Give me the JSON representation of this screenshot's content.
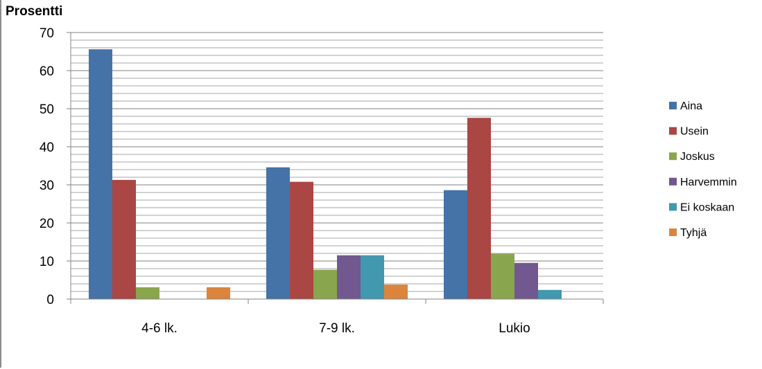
{
  "chart_data": {
    "type": "bar",
    "title": "Prosentti",
    "categories": [
      "4-6 lk.",
      "7-9 lk.",
      "Lukio"
    ],
    "series": [
      {
        "name": "Aina",
        "color": "#4572A7",
        "values": [
          65.6,
          34.6,
          28.6
        ]
      },
      {
        "name": "Usein",
        "color": "#AA4643",
        "values": [
          31.3,
          30.8,
          47.6
        ]
      },
      {
        "name": "Joskus",
        "color": "#89A54E",
        "values": [
          3.1,
          7.7,
          11.9
        ]
      },
      {
        "name": "Harvemmin",
        "color": "#71588F",
        "values": [
          0,
          11.5,
          9.5
        ]
      },
      {
        "name": "Ei koskaan",
        "color": "#4198AF",
        "values": [
          0,
          11.5,
          2.4
        ]
      },
      {
        "name": "Tyhjä",
        "color": "#DB843D",
        "values": [
          3.1,
          3.8,
          0
        ]
      }
    ],
    "ylim": [
      0,
      70
    ],
    "yticks": [
      0,
      10,
      20,
      30,
      40,
      50,
      60,
      70
    ],
    "grid": true,
    "legend": "right"
  }
}
